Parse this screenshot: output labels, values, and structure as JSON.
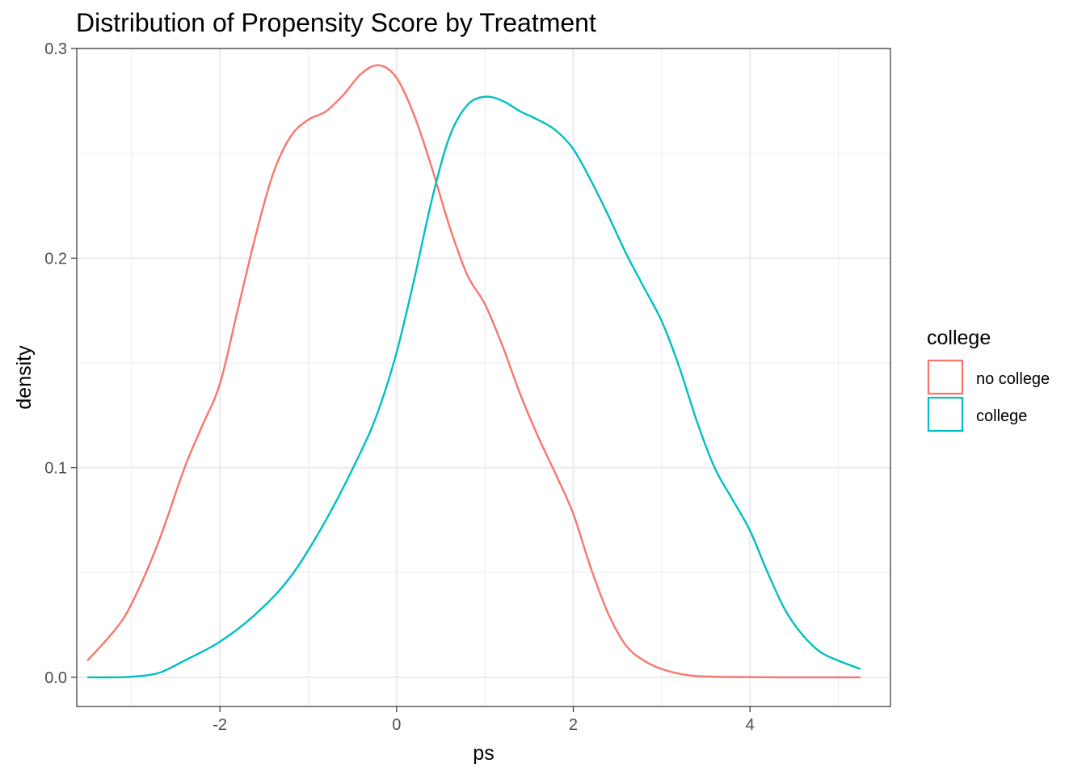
{
  "chart_data": {
    "type": "line",
    "title": "Distribution of Propensity Score by Treatment",
    "xlabel": "ps",
    "ylabel": "density",
    "xlim": [
      -3.62,
      5.59
    ],
    "ylim": [
      -0.0139,
      0.3
    ],
    "x_ticks": [
      -2,
      0,
      2,
      4
    ],
    "x_tick_labels": [
      "-2",
      "0",
      "2",
      "4"
    ],
    "y_ticks": [
      0.0,
      0.1,
      0.2,
      0.3
    ],
    "y_tick_labels": [
      "0.0",
      "0.1",
      "0.2",
      "0.3"
    ],
    "x_minor_ticks": [
      -3,
      -1,
      1,
      3,
      5
    ],
    "y_minor_ticks": [
      0.05,
      0.15,
      0.25
    ],
    "grid": true,
    "legend": {
      "title": "college",
      "position": "right"
    },
    "series": [
      {
        "name": "no college",
        "color": "#F8766D",
        "x": [
          -3.5,
          -3.2,
          -3.0,
          -2.7,
          -2.4,
          -2.2,
          -2.0,
          -1.8,
          -1.6,
          -1.4,
          -1.2,
          -1.0,
          -0.8,
          -0.6,
          -0.4,
          -0.2,
          0.0,
          0.2,
          0.4,
          0.6,
          0.8,
          1.0,
          1.2,
          1.4,
          1.6,
          1.8,
          2.0,
          2.2,
          2.4,
          2.6,
          2.8,
          3.0,
          3.3,
          3.6,
          4.0,
          4.5,
          5.0,
          5.25
        ],
        "y": [
          0.008,
          0.022,
          0.035,
          0.064,
          0.1,
          0.12,
          0.14,
          0.175,
          0.21,
          0.24,
          0.258,
          0.266,
          0.27,
          0.278,
          0.288,
          0.292,
          0.286,
          0.268,
          0.243,
          0.215,
          0.192,
          0.178,
          0.158,
          0.135,
          0.115,
          0.097,
          0.078,
          0.052,
          0.03,
          0.015,
          0.008,
          0.004,
          0.001,
          0.0003,
          0.0001,
          0.0,
          0.0,
          0.0
        ]
      },
      {
        "name": "college",
        "color": "#00BFC4",
        "x": [
          -3.5,
          -3.2,
          -3.0,
          -2.7,
          -2.4,
          -2.0,
          -1.6,
          -1.2,
          -0.8,
          -0.4,
          -0.2,
          0.0,
          0.2,
          0.4,
          0.6,
          0.8,
          1.0,
          1.2,
          1.4,
          1.6,
          1.8,
          2.0,
          2.2,
          2.4,
          2.6,
          2.8,
          3.0,
          3.2,
          3.4,
          3.6,
          3.8,
          4.0,
          4.2,
          4.4,
          4.6,
          4.8,
          5.0,
          5.25
        ],
        "y": [
          0.0,
          0.0,
          0.0003,
          0.002,
          0.008,
          0.017,
          0.03,
          0.048,
          0.075,
          0.108,
          0.128,
          0.155,
          0.19,
          0.228,
          0.258,
          0.273,
          0.277,
          0.275,
          0.27,
          0.266,
          0.261,
          0.252,
          0.237,
          0.22,
          0.202,
          0.186,
          0.17,
          0.148,
          0.122,
          0.1,
          0.085,
          0.07,
          0.05,
          0.032,
          0.02,
          0.012,
          0.008,
          0.004
        ]
      }
    ]
  }
}
